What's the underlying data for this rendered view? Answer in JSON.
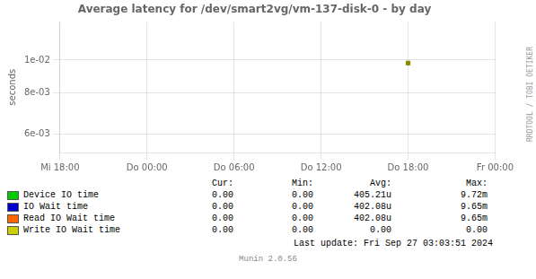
{
  "chart_data": {
    "type": "scatter",
    "title": "Average latency for /dev/smart2vg/vm-137-disk-0 - by day",
    "y_label": "seconds",
    "categories": [
      "Mi 18:00",
      "Do 00:00",
      "Do 06:00",
      "Do 12:00",
      "Do 18:00",
      "Fr 00:00"
    ],
    "values": [
      null,
      null,
      null,
      null,
      0.0098,
      null
    ],
    "color": "#888800",
    "marker": "square",
    "log": "y",
    "ylim": [
      0.0053,
      0.013
    ],
    "yticks": [
      {
        "value": 0.006,
        "label": "6e-03"
      },
      {
        "value": 0.008,
        "label": "8e-03"
      },
      {
        "value": 0.01,
        "label": "1e-02"
      }
    ],
    "grid": true,
    "legend_table": {
      "headers": [
        "Cur:",
        "Min:",
        "Avg:",
        "Max:"
      ],
      "rows": [
        {
          "label": "Device IO time",
          "color": "#00cc00",
          "cells": [
            "0.00",
            "0.00",
            "405.21u",
            "9.72m"
          ]
        },
        {
          "label": "IO Wait time",
          "color": "#0000cc",
          "cells": [
            "0.00",
            "0.00",
            "402.08u",
            "9.65m"
          ]
        },
        {
          "label": "Read IO Wait time",
          "color": "#ff6600",
          "cells": [
            "0.00",
            "0.00",
            "402.08u",
            "9.65m"
          ]
        },
        {
          "label": "Write IO Wait time",
          "color": "#cccc00",
          "cells": [
            "0.00",
            "0.00",
            "0.00",
            "0.00"
          ]
        }
      ]
    },
    "annotations": [
      "RRDTOOL / TOBI OETIKER",
      "Last update: Fri Sep 27 03:03:51 2024",
      "Munin 2.0.56"
    ]
  }
}
